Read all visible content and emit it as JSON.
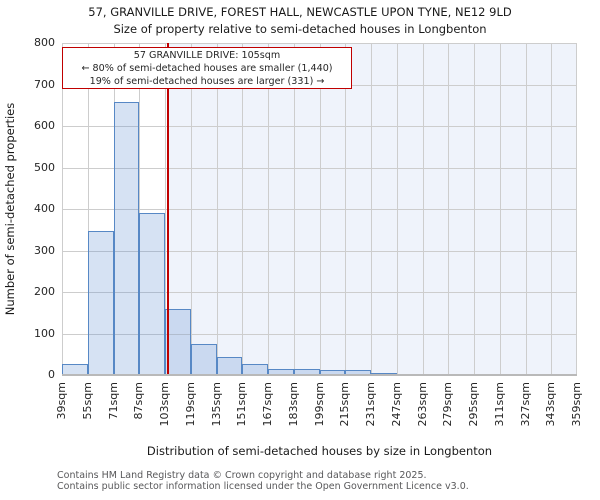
{
  "title": {
    "line1": "57, GRANVILLE DRIVE, FOREST HALL, NEWCASTLE UPON TYNE, NE12 9LD",
    "line2": "Size of property relative to semi-detached houses in Longbenton"
  },
  "annotation": {
    "line1": "57 GRANVILLE DRIVE: 105sqm",
    "line2": "← 80% of semi-detached houses are smaller (1,440)",
    "line3": "19% of semi-detached houses are larger (331) →"
  },
  "chart_data": {
    "type": "bar",
    "title": "Size of property relative to semi-detached houses in Longbenton",
    "xlabel": "Distribution of semi-detached houses by size in Longbenton",
    "ylabel": "Number of semi-detached properties",
    "ylim": [
      0,
      800
    ],
    "y_ticks": [
      0,
      100,
      200,
      300,
      400,
      500,
      600,
      700,
      800
    ],
    "x_tick_labels": [
      "39sqm",
      "55sqm",
      "71sqm",
      "87sqm",
      "103sqm",
      "119sqm",
      "135sqm",
      "151sqm",
      "167sqm",
      "183sqm",
      "199sqm",
      "215sqm",
      "231sqm",
      "247sqm",
      "263sqm",
      "279sqm",
      "295sqm",
      "311sqm",
      "327sqm",
      "343sqm",
      "359sqm"
    ],
    "bin_width_sqm": 16,
    "categories": [
      "39-55",
      "55-71",
      "71-87",
      "87-103",
      "103-119",
      "119-135",
      "135-151",
      "151-167",
      "167-183",
      "183-199",
      "199-215",
      "215-231",
      "231-247",
      "247-263",
      "263-279",
      "279-295",
      "295-311",
      "311-327",
      "327-343",
      "343-359"
    ],
    "values": [
      26,
      347,
      658,
      390,
      158,
      75,
      44,
      26,
      15,
      14,
      12,
      11,
      5,
      0,
      3,
      3,
      0,
      0,
      0,
      0
    ],
    "marker": {
      "value_sqm": 105,
      "smaller_count": "1,440",
      "smaller_pct": "80%",
      "larger_count": "331",
      "larger_pct": "19%"
    },
    "grid": true,
    "legend": false,
    "colors": {
      "bar_fill": "rgba(105,148,211,0.27)",
      "bar_edge": "#5788c5",
      "marker_line": "#c00000",
      "annotation_border": "#c00000",
      "grid": "#cdcdcd",
      "shade_right_of_marker": "#eff3fb"
    }
  },
  "footer": {
    "line1": "Contains HM Land Registry data © Crown copyright and database right 2025.",
    "line2": "Contains public sector information licensed under the Open Government Licence v3.0."
  }
}
